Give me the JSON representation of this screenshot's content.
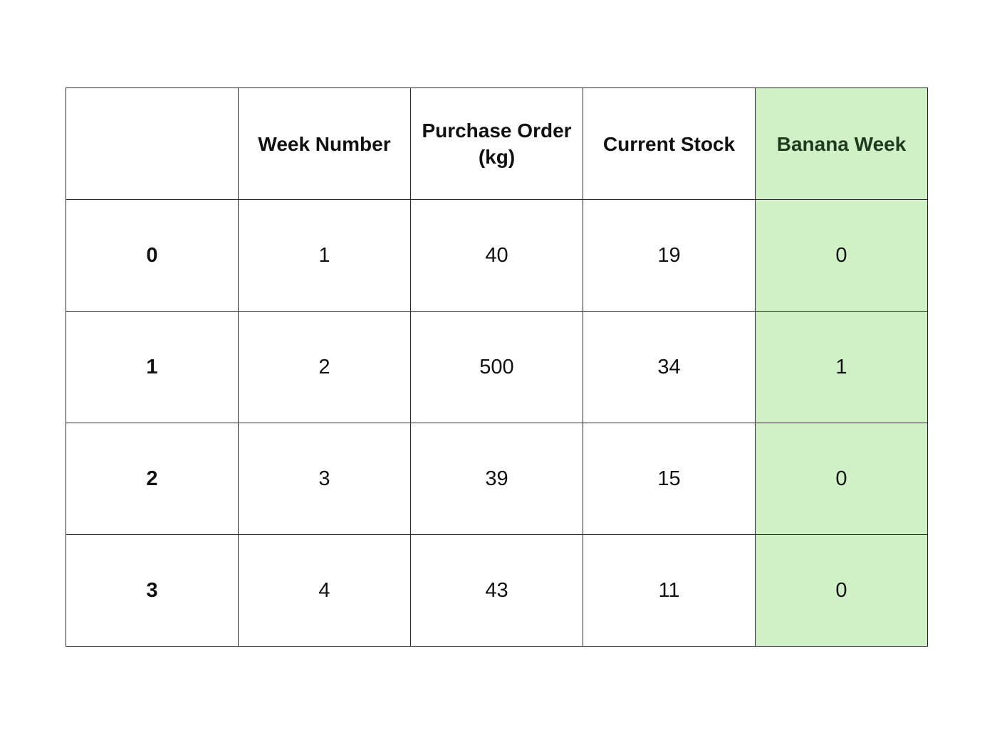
{
  "highlight_color": "#d0f1c6",
  "highlighted_column": "Banana Week",
  "table": {
    "headers": [
      "",
      "Week Number",
      "Purchase Order (kg)",
      "Current Stock",
      "Banana Week"
    ],
    "rows": [
      {
        "index": "0",
        "cells": [
          "1",
          "40",
          "19",
          "0"
        ]
      },
      {
        "index": "1",
        "cells": [
          "2",
          "500",
          "34",
          "1"
        ]
      },
      {
        "index": "2",
        "cells": [
          "3",
          "39",
          "15",
          "0"
        ]
      },
      {
        "index": "3",
        "cells": [
          "4",
          "43",
          "11",
          "0"
        ]
      }
    ]
  }
}
